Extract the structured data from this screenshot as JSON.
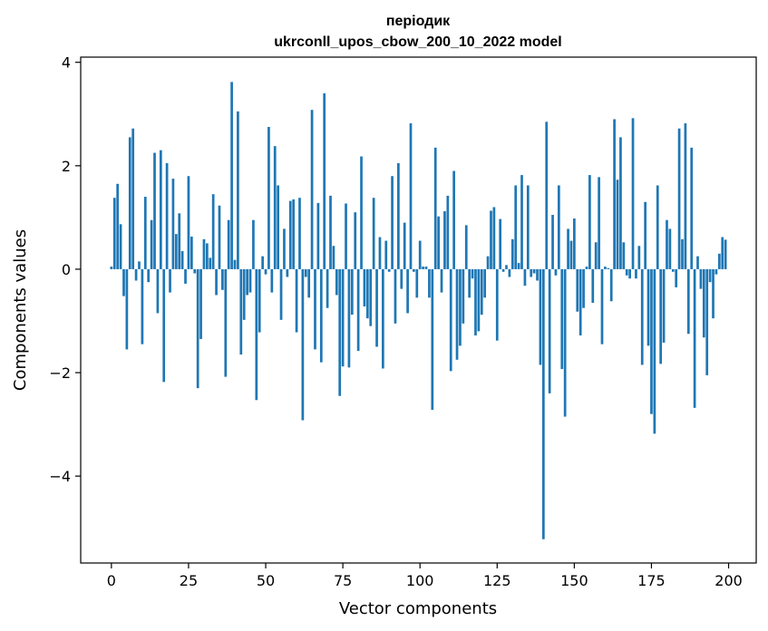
{
  "chart_data": {
    "type": "bar",
    "title_lines": [
      "періодик",
      "ukrconll_upos_cbow_200_10_2022 model"
    ],
    "xlabel": "Vector components",
    "ylabel": "Components values",
    "xlim": [
      -9.95,
      208.95
    ],
    "ylim": [
      -5.68,
      4.1
    ],
    "xticks": [
      0,
      25,
      50,
      75,
      100,
      125,
      150,
      175,
      200
    ],
    "xtick_labels": [
      "0",
      "25",
      "50",
      "75",
      "100",
      "125",
      "150",
      "175",
      "200"
    ],
    "yticks": [
      -4,
      -2,
      0,
      2,
      4
    ],
    "ytick_labels": [
      "−4",
      "−2",
      "0",
      "2",
      "4"
    ],
    "grid": false,
    "bar_color": "#1f77b4",
    "x": [
      0,
      1,
      2,
      3,
      4,
      5,
      6,
      7,
      8,
      9,
      10,
      11,
      12,
      13,
      14,
      15,
      16,
      17,
      18,
      19,
      20,
      21,
      22,
      23,
      24,
      25,
      26,
      27,
      28,
      29,
      30,
      31,
      32,
      33,
      34,
      35,
      36,
      37,
      38,
      39,
      40,
      41,
      42,
      43,
      44,
      45,
      46,
      47,
      48,
      49,
      50,
      51,
      52,
      53,
      54,
      55,
      56,
      57,
      58,
      59,
      60,
      61,
      62,
      63,
      64,
      65,
      66,
      67,
      68,
      69,
      70,
      71,
      72,
      73,
      74,
      75,
      76,
      77,
      78,
      79,
      80,
      81,
      82,
      83,
      84,
      85,
      86,
      87,
      88,
      89,
      90,
      91,
      92,
      93,
      94,
      95,
      96,
      97,
      98,
      99,
      100,
      101,
      102,
      103,
      104,
      105,
      106,
      107,
      108,
      109,
      110,
      111,
      112,
      113,
      114,
      115,
      116,
      117,
      118,
      119,
      120,
      121,
      122,
      123,
      124,
      125,
      126,
      127,
      128,
      129,
      130,
      131,
      132,
      133,
      134,
      135,
      136,
      137,
      138,
      139,
      140,
      141,
      142,
      143,
      144,
      145,
      146,
      147,
      148,
      149,
      150,
      151,
      152,
      153,
      154,
      155,
      156,
      157,
      158,
      159,
      160,
      161,
      162,
      163,
      164,
      165,
      166,
      167,
      168,
      169,
      170,
      171,
      172,
      173,
      174,
      175,
      176,
      177,
      178,
      179,
      180,
      181,
      182,
      183,
      184,
      185,
      186,
      187,
      188,
      189,
      190,
      191,
      192,
      193,
      194,
      195,
      196,
      197,
      198,
      199
    ],
    "values": [
      0.05,
      1.38,
      1.65,
      0.87,
      -0.52,
      -1.55,
      2.55,
      2.72,
      -0.22,
      0.15,
      -1.45,
      1.4,
      -0.25,
      0.95,
      2.25,
      -0.85,
      2.3,
      -2.18,
      2.05,
      -0.45,
      1.75,
      0.68,
      1.08,
      0.35,
      -0.28,
      1.8,
      0.63,
      -0.08,
      -2.3,
      -1.35,
      0.58,
      0.5,
      0.22,
      1.45,
      -0.5,
      1.23,
      -0.4,
      -2.08,
      0.95,
      3.62,
      0.18,
      3.05,
      -1.65,
      -0.98,
      -0.5,
      -0.45,
      0.95,
      -2.53,
      -1.22,
      0.25,
      -0.1,
      2.75,
      -0.45,
      2.38,
      1.62,
      -0.98,
      0.78,
      -0.15,
      1.32,
      1.35,
      -1.22,
      1.38,
      -2.92,
      -0.15,
      -0.55,
      3.08,
      -1.55,
      1.28,
      -1.8,
      3.4,
      -0.75,
      1.42,
      0.45,
      -0.5,
      -2.45,
      -1.88,
      1.27,
      -1.9,
      -0.88,
      1.1,
      -1.58,
      2.18,
      -0.72,
      -0.95,
      -1.1,
      1.38,
      -1.5,
      0.62,
      -1.92,
      0.55,
      -0.05,
      1.8,
      -1.05,
      2.05,
      -0.38,
      0.9,
      -0.85,
      2.82,
      -0.05,
      -0.55,
      0.55,
      0.05,
      0.05,
      -0.55,
      -2.72,
      2.35,
      1.02,
      -0.45,
      1.12,
      1.42,
      -1.97,
      1.9,
      -1.75,
      -1.48,
      -1.05,
      0.85,
      -0.55,
      -0.18,
      -1.28,
      -1.2,
      -0.88,
      -0.55,
      0.25,
      1.13,
      1.2,
      -1.38,
      0.97,
      -0.05,
      0.08,
      -0.15,
      0.58,
      1.62,
      0.12,
      1.82,
      -0.32,
      1.62,
      -0.15,
      -0.08,
      -0.22,
      -1.85,
      -5.22,
      2.85,
      -2.4,
      1.05,
      -0.12,
      1.62,
      -1.93,
      -2.85,
      0.78,
      0.55,
      0.98,
      -0.82,
      -1.28,
      -0.75,
      0.05,
      1.82,
      -0.65,
      0.52,
      1.78,
      -1.45,
      0.05,
      0.02,
      -0.62,
      2.9,
      1.73,
      2.55,
      0.52,
      -0.12,
      -0.18,
      2.92,
      -0.18,
      0.45,
      -1.85,
      1.3,
      -1.48,
      -2.8,
      -3.18,
      1.62,
      -1.83,
      -1.42,
      0.95,
      0.78,
      -0.05,
      -0.35,
      2.72,
      0.58,
      2.82,
      -1.25,
      2.35,
      -2.68,
      0.25,
      -0.38,
      -1.32,
      -2.05,
      -0.25,
      -0.95,
      -0.1,
      0.3,
      0.62,
      0.57
    ]
  }
}
